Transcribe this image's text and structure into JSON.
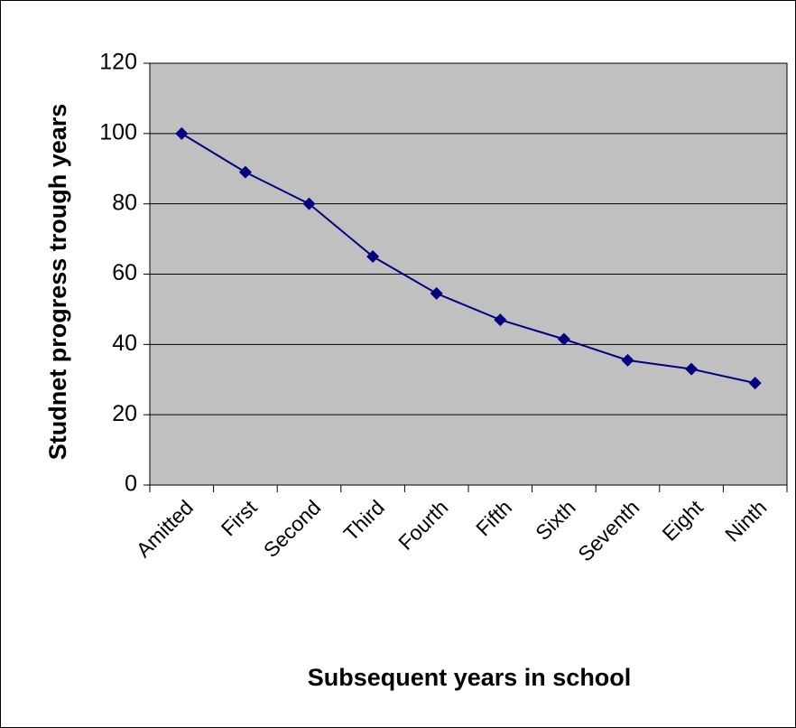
{
  "chart_data": {
    "type": "line",
    "x_label": "Subsequent years in school",
    "y_label": "Studnet progress trough years",
    "categories": [
      "Amitted",
      "First",
      "Second",
      "Third",
      "Fourth",
      "Fifth",
      "Sixth",
      "Seventh",
      "Eight",
      "Ninth"
    ],
    "values": [
      100,
      89,
      80,
      65,
      54.5,
      47,
      41.5,
      35.5,
      33,
      29
    ],
    "color": "#000080",
    "ylim": [
      0,
      120
    ],
    "yticks": [
      0,
      20,
      40,
      60,
      80,
      100,
      120
    ],
    "grid": true
  }
}
